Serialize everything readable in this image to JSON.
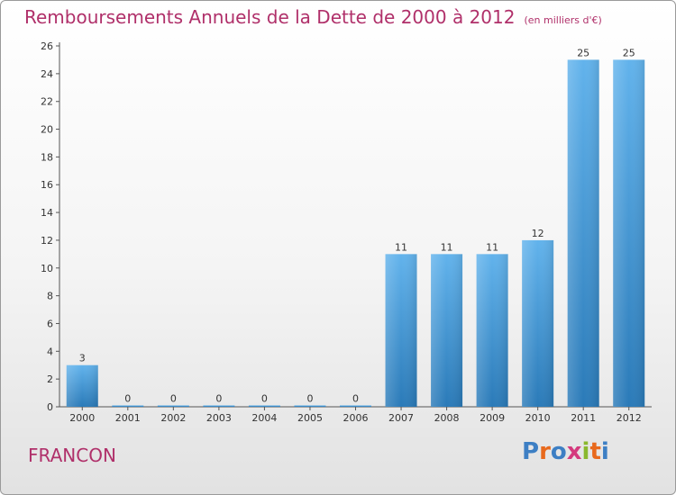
{
  "header": {
    "title": "Remboursements Annuels de la Dette de 2000 à 2012",
    "subtitle": "(en milliers d'€)"
  },
  "footer": {
    "commune": "FRANCON",
    "logo_text": "Proxiti"
  },
  "colors": {
    "title": "#b0306a",
    "bar_top": "#62b3ec",
    "bar_bottom": "#2a7ab8",
    "logo_letters": [
      "#3d7fc4",
      "#e8691d",
      "#3d7fc4",
      "#d43a7e",
      "#8ab82e",
      "#e8691d",
      "#3d7fc4"
    ]
  },
  "chart_data": {
    "type": "bar",
    "title": "Remboursements Annuels de la Dette de 2000 à 2012",
    "subtitle": "(en milliers d'€)",
    "categories": [
      "2000",
      "2001",
      "2002",
      "2003",
      "2004",
      "2005",
      "2006",
      "2007",
      "2008",
      "2009",
      "2010",
      "2011",
      "2012"
    ],
    "values": [
      3,
      0,
      0,
      0,
      0,
      0,
      0,
      11,
      11,
      11,
      12,
      25,
      25
    ],
    "data_labels": [
      "3",
      "0",
      "0",
      "0",
      "0",
      "0",
      "0",
      "11",
      "11",
      "11",
      "12",
      "25",
      "25"
    ],
    "ylim": [
      0,
      26
    ],
    "yticks": [
      0,
      2,
      4,
      6,
      8,
      10,
      12,
      14,
      16,
      18,
      20,
      22,
      24,
      26
    ],
    "ytick_labels": [
      "0",
      "2",
      "4",
      "6",
      "8",
      "10",
      "12",
      "14",
      "16",
      "18",
      "20",
      "22",
      "24",
      "26"
    ],
    "xlabel": "",
    "ylabel": "",
    "grid": false,
    "legend": "none"
  }
}
